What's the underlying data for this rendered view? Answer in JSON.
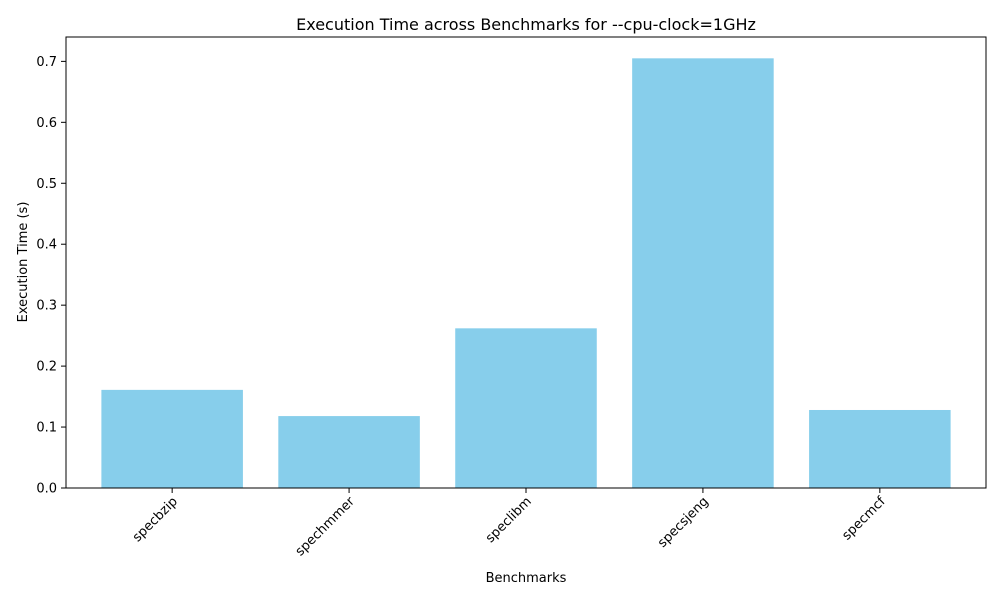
{
  "chart_data": {
    "type": "bar",
    "title": "Execution Time across Benchmarks for --cpu-clock=1GHz",
    "xlabel": "Benchmarks",
    "ylabel": "Execution Time (s)",
    "categories": [
      "specbzip",
      "spechmmer",
      "speclibm",
      "specsjeng",
      "specmcf"
    ],
    "values": [
      0.161,
      0.118,
      0.262,
      0.705,
      0.128
    ],
    "ylim": [
      0,
      0.74
    ],
    "yticks": [
      0.0,
      0.1,
      0.2,
      0.3,
      0.4,
      0.5,
      0.6,
      0.7
    ],
    "ytick_labels": [
      "0.0",
      "0.1",
      "0.2",
      "0.3",
      "0.4",
      "0.5",
      "0.6",
      "0.7"
    ],
    "bar_color": "#87ceeb",
    "grid": false,
    "xtick_rotation": "45"
  }
}
